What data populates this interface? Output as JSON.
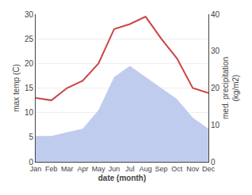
{
  "chart_data": {
    "type": "line",
    "xlabel": "date (month)",
    "ylabel": "max temp (C)",
    "y2label": "med. precipitation\n(kg/m2)",
    "categories": [
      "Jan",
      "Feb",
      "Mar",
      "Apr",
      "May",
      "Jun",
      "Jul",
      "Aug",
      "Sep",
      "Oct",
      "Nov",
      "Dec"
    ],
    "series": [
      {
        "type": "area",
        "color": "#c0ccee",
        "axis": "y2",
        "values": [
          7,
          7,
          8,
          9,
          14,
          23,
          26,
          23,
          20,
          17,
          12,
          9
        ]
      },
      {
        "type": "line",
        "color": "#cc4444",
        "values": [
          13,
          12.5,
          15,
          16.5,
          20,
          27,
          28,
          29.5,
          25,
          21,
          15,
          14
        ]
      }
    ],
    "ylim": [
      0,
      30
    ],
    "yticks": [
      0,
      5,
      10,
      15,
      20,
      25,
      30
    ],
    "y2lim": [
      0,
      40
    ],
    "y2ticks": [
      0,
      10,
      20,
      30,
      40
    ],
    "grid": true
  }
}
